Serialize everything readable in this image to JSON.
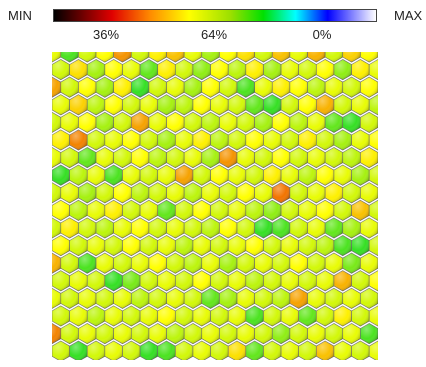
{
  "legend": {
    "min_label": "MIN",
    "max_label": "MAX",
    "tick_labels": [
      "36%",
      "64%",
      "0%"
    ]
  },
  "colors": {
    "min": "#000000",
    "max": "#ffffff",
    "scale": [
      "#000000",
      "#e00000",
      "#ff8c00",
      "#ffff00",
      "#9adf00",
      "#00e000",
      "#00ffff",
      "#0000ff",
      "#ffffff"
    ]
  },
  "chart_data": {
    "type": "heatmap",
    "title": "",
    "layout": "hexagonal grid",
    "value_scale": "0 = orange, 0.5 = yellow, 1 = green",
    "columns": 19,
    "rows": 18,
    "values": [
      [
        0.55,
        0.9,
        0.6,
        0.5,
        0.15,
        0.6,
        0.45,
        0.3,
        0.55,
        0.7,
        0.5,
        0.4,
        0.6,
        0.3,
        0.55,
        0.25,
        0.6,
        0.35,
        0.5
      ],
      [
        0.6,
        0.4,
        0.7,
        0.5,
        0.55,
        0.85,
        0.45,
        0.6,
        0.75,
        0.5,
        0.65,
        0.45,
        0.7,
        0.55,
        0.6,
        0.5,
        0.75,
        0.45,
        0.55
      ],
      [
        0.2,
        0.6,
        0.5,
        0.7,
        0.45,
        0.95,
        0.6,
        0.55,
        0.7,
        0.5,
        0.6,
        0.9,
        0.55,
        0.45,
        0.5,
        0.65,
        0.55,
        0.6,
        0.5
      ],
      [
        0.55,
        0.35,
        0.65,
        0.5,
        0.6,
        0.55,
        0.7,
        0.65,
        0.5,
        0.55,
        0.6,
        0.85,
        0.95,
        0.6,
        0.5,
        0.25,
        0.6,
        0.55,
        0.65
      ],
      [
        0.6,
        0.55,
        0.5,
        0.7,
        0.6,
        0.2,
        0.55,
        0.5,
        0.6,
        0.65,
        0.55,
        0.6,
        0.7,
        0.5,
        0.65,
        0.55,
        0.85,
        0.95,
        0.6
      ],
      [
        0.45,
        0.1,
        0.6,
        0.55,
        0.5,
        0.6,
        0.7,
        0.55,
        0.45,
        0.65,
        0.6,
        0.5,
        0.55,
        0.6,
        0.45,
        0.6,
        0.7,
        0.55,
        0.5
      ],
      [
        0.55,
        0.6,
        0.85,
        0.55,
        0.6,
        0.5,
        0.65,
        0.6,
        0.55,
        0.7,
        0.15,
        0.55,
        0.6,
        0.5,
        0.6,
        0.55,
        0.6,
        0.65,
        0.45
      ],
      [
        0.95,
        0.65,
        0.55,
        0.9,
        0.55,
        0.6,
        0.55,
        0.2,
        0.6,
        0.5,
        0.55,
        0.6,
        0.45,
        0.55,
        0.65,
        0.5,
        0.55,
        0.7,
        0.6
      ],
      [
        0.6,
        0.55,
        0.7,
        0.6,
        0.5,
        0.65,
        0.6,
        0.55,
        0.65,
        0.55,
        0.6,
        0.5,
        0.55,
        0.05,
        0.6,
        0.55,
        0.45,
        0.6,
        0.55
      ],
      [
        0.5,
        0.65,
        0.55,
        0.45,
        0.6,
        0.55,
        0.85,
        0.6,
        0.5,
        0.6,
        0.55,
        0.65,
        0.75,
        0.6,
        0.55,
        0.5,
        0.6,
        0.3,
        0.6
      ],
      [
        0.6,
        0.45,
        0.6,
        0.65,
        0.55,
        0.5,
        0.6,
        0.55,
        0.6,
        0.65,
        0.5,
        0.6,
        0.95,
        0.9,
        0.6,
        0.55,
        0.85,
        0.7,
        0.55
      ],
      [
        0.5,
        0.6,
        0.55,
        0.6,
        0.5,
        0.6,
        0.55,
        0.65,
        0.55,
        0.6,
        0.55,
        0.5,
        0.6,
        0.55,
        0.6,
        0.65,
        0.9,
        0.95,
        0.6
      ],
      [
        0.25,
        0.6,
        0.9,
        0.55,
        0.6,
        0.55,
        0.5,
        0.6,
        0.65,
        0.55,
        0.7,
        0.6,
        0.55,
        0.6,
        0.5,
        0.6,
        0.55,
        0.8,
        0.55
      ],
      [
        0.6,
        0.55,
        0.6,
        0.95,
        0.8,
        0.6,
        0.55,
        0.6,
        0.5,
        0.6,
        0.55,
        0.65,
        0.6,
        0.55,
        0.6,
        0.55,
        0.25,
        0.6,
        0.5
      ],
      [
        0.55,
        0.6,
        0.55,
        0.6,
        0.55,
        0.65,
        0.6,
        0.55,
        0.6,
        0.85,
        0.7,
        0.55,
        0.6,
        0.65,
        0.2,
        0.55,
        0.6,
        0.55,
        0.6
      ],
      [
        0.6,
        0.55,
        0.65,
        0.55,
        0.6,
        0.55,
        0.5,
        0.6,
        0.55,
        0.6,
        0.55,
        0.9,
        0.6,
        0.55,
        0.85,
        0.6,
        0.45,
        0.6,
        0.55
      ],
      [
        0.1,
        0.6,
        0.55,
        0.6,
        0.55,
        0.6,
        0.55,
        0.65,
        0.6,
        0.55,
        0.6,
        0.55,
        0.6,
        0.75,
        0.6,
        0.55,
        0.6,
        0.55,
        0.9
      ],
      [
        0.6,
        0.95,
        0.6,
        0.55,
        0.6,
        0.95,
        0.9,
        0.6,
        0.55,
        0.6,
        0.4,
        0.85,
        0.6,
        0.55,
        0.6,
        0.3,
        0.55,
        0.6,
        0.55
      ]
    ]
  }
}
